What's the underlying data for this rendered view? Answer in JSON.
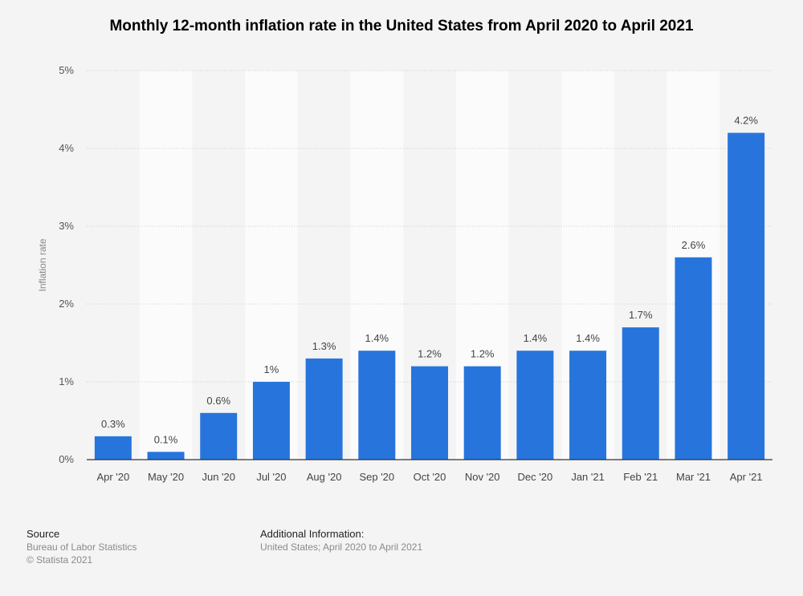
{
  "title": "Monthly 12-month inflation rate in the United States from April 2020 to April 2021",
  "colors": {
    "bar": "#2775dc",
    "band": "#fbfbfb",
    "grid": "#cccccc",
    "axis": "#333333",
    "text": "#555555"
  },
  "chart_data": {
    "type": "bar",
    "title": "Monthly 12-month inflation rate in the United States from April 2020 to April 2021",
    "xlabel": "",
    "ylabel": "Inflation rate",
    "categories": [
      "Apr '20",
      "May '20",
      "Jun '20",
      "Jul '20",
      "Aug '20",
      "Sep '20",
      "Oct '20",
      "Nov '20",
      "Dec '20",
      "Jan '21",
      "Feb '21",
      "Mar '21",
      "Apr '21"
    ],
    "values": [
      0.3,
      0.1,
      0.6,
      1,
      1.3,
      1.4,
      1.2,
      1.2,
      1.4,
      1.4,
      1.7,
      2.6,
      4.2
    ],
    "value_labels": [
      "0.3%",
      "0.1%",
      "0.6%",
      "1%",
      "1.3%",
      "1.4%",
      "1.2%",
      "1.2%",
      "1.4%",
      "1.4%",
      "1.7%",
      "2.6%",
      "4.2%"
    ],
    "ylim": [
      0,
      5
    ],
    "yticks": [
      0,
      1,
      2,
      3,
      4,
      5
    ],
    "ytick_labels": [
      "0%",
      "1%",
      "2%",
      "3%",
      "4%",
      "5%"
    ],
    "grid": true
  },
  "footer": {
    "source_heading": "Source",
    "source_lines": [
      "Bureau of Labor Statistics",
      "© Statista 2021"
    ],
    "info_heading": "Additional Information:",
    "info_lines": [
      "United States; April 2020 to April 2021"
    ]
  }
}
